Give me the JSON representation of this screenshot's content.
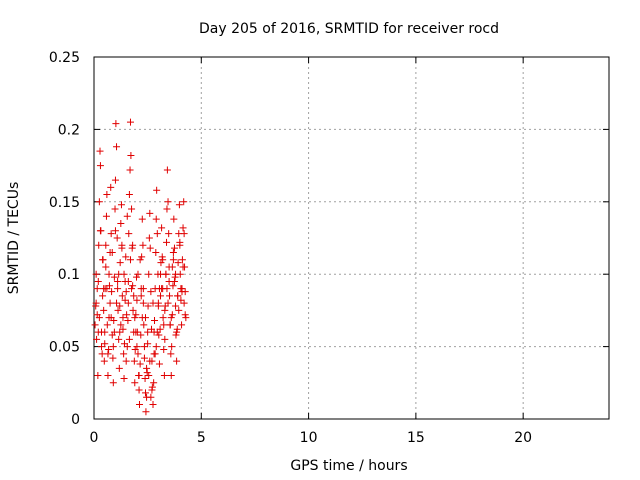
{
  "chart_data": {
    "type": "scatter",
    "title": "Day 205 of 2016, SRMTID for receiver rocd",
    "xlabel": "GPS time / hours",
    "ylabel": "SRMTID / TECUs",
    "xlim": [
      0,
      24
    ],
    "ylim": [
      0,
      0.25
    ],
    "x_ticks": [
      0,
      5,
      10,
      15,
      20
    ],
    "y_ticks": [
      0,
      0.05,
      0.1,
      0.15,
      0.2,
      0.25
    ],
    "x_tick_labels": [
      "0",
      "5",
      "10",
      "15",
      "20"
    ],
    "y_tick_labels": [
      "0",
      "0.05",
      "0.1",
      "0.15",
      "0.2",
      "0.25"
    ],
    "grid": true,
    "marker": "+",
    "marker_color": "#e00000",
    "x": [
      0.05,
      0.08,
      0.1,
      0.12,
      0.15,
      0.18,
      0.2,
      0.22,
      0.25,
      0.28,
      0.3,
      0.32,
      0.35,
      0.38,
      0.4,
      0.42,
      0.45,
      0.48,
      0.5,
      0.52,
      0.55,
      0.58,
      0.6,
      0.62,
      0.65,
      0.68,
      0.7,
      0.72,
      0.75,
      0.78,
      0.8,
      0.82,
      0.85,
      0.88,
      0.9,
      0.92,
      0.95,
      0.98,
      1.0,
      1.02,
      1.05,
      1.08,
      1.1,
      1.12,
      1.15,
      1.18,
      1.2,
      1.22,
      1.25,
      1.28,
      1.3,
      1.32,
      1.35,
      1.38,
      1.4,
      1.42,
      1.45,
      1.48,
      1.5,
      1.52,
      1.55,
      1.58,
      1.6,
      1.62,
      1.65,
      1.68,
      1.7,
      1.72,
      1.75,
      1.78,
      1.8,
      1.82,
      1.85,
      1.88,
      1.9,
      1.92,
      1.95,
      1.98,
      2.0,
      2.02,
      2.05,
      2.08,
      2.1,
      2.12,
      2.15,
      2.18,
      2.2,
      2.22,
      2.25,
      2.28,
      2.3,
      2.32,
      2.35,
      2.38,
      2.4,
      2.42,
      2.45,
      2.48,
      2.5,
      2.52,
      2.55,
      2.58,
      2.6,
      2.62,
      2.65,
      2.68,
      2.7,
      2.72,
      2.75,
      2.78,
      2.8,
      2.82,
      2.85,
      2.88,
      2.9,
      2.92,
      2.95,
      2.98,
      3.0,
      3.02,
      3.05,
      3.08,
      3.1,
      3.12,
      3.15,
      3.18,
      3.2,
      3.22,
      3.25,
      3.28,
      3.3,
      3.32,
      3.35,
      3.38,
      3.4,
      3.42,
      3.45,
      3.48,
      3.5,
      3.52,
      3.55,
      3.58,
      3.6,
      3.62,
      3.65,
      3.68,
      3.7,
      3.72,
      3.75,
      3.78,
      3.8,
      3.82,
      3.85,
      3.88,
      3.9,
      3.92,
      3.95,
      3.98,
      4.0,
      4.02,
      4.05,
      4.08,
      4.1,
      4.12,
      4.15,
      4.18,
      4.2,
      4.22,
      4.25,
      4.28,
      0.1,
      0.3,
      0.5,
      0.7,
      0.9,
      1.1,
      1.3,
      1.5,
      1.7,
      1.9,
      2.1,
      2.3,
      2.5,
      2.7,
      2.9,
      3.1,
      3.3,
      3.5,
      3.7,
      3.9,
      4.1,
      0.2,
      0.4,
      0.6,
      0.8,
      1.0,
      1.2,
      1.4,
      1.6,
      1.8,
      2.0,
      2.2,
      2.4,
      2.6,
      2.8,
      3.0,
      3.2,
      3.4,
      3.6,
      3.8,
      4.0,
      4.2,
      0.15,
      0.35,
      0.55,
      0.75,
      0.95,
      1.15,
      1.35,
      1.55,
      1.75,
      1.95,
      2.15,
      2.35,
      2.55,
      2.75,
      2.95,
      3.15,
      3.35,
      3.55,
      3.75,
      3.95,
      4.15,
      0.25,
      0.45,
      0.65,
      0.85,
      1.05,
      1.25,
      1.45,
      1.65,
      1.85,
      2.05,
      2.25,
      2.45,
      2.65,
      2.85,
      3.05,
      3.25,
      3.45,
      3.65,
      3.85,
      4.05,
      4.25
    ],
    "y": [
      0.065,
      0.078,
      0.1,
      0.055,
      0.072,
      0.03,
      0.095,
      0.12,
      0.15,
      0.185,
      0.175,
      0.13,
      0.06,
      0.045,
      0.085,
      0.11,
      0.075,
      0.04,
      0.052,
      0.09,
      0.105,
      0.14,
      0.155,
      0.065,
      0.03,
      0.048,
      0.07,
      0.092,
      0.115,
      0.16,
      0.128,
      0.088,
      0.058,
      0.042,
      0.025,
      0.068,
      0.098,
      0.145,
      0.165,
      0.204,
      0.188,
      0.125,
      0.095,
      0.075,
      0.055,
      0.035,
      0.078,
      0.108,
      0.135,
      0.148,
      0.118,
      0.085,
      0.062,
      0.045,
      0.028,
      0.052,
      0.082,
      0.112,
      0.088,
      0.072,
      0.05,
      0.068,
      0.095,
      0.128,
      0.155,
      0.172,
      0.205,
      0.182,
      0.145,
      0.118,
      0.092,
      0.075,
      0.06,
      0.04,
      0.025,
      0.048,
      0.072,
      0.098,
      0.082,
      0.06,
      0.045,
      0.03,
      0.02,
      0.01,
      0.038,
      0.058,
      0.085,
      0.112,
      0.138,
      0.12,
      0.09,
      0.065,
      0.042,
      0.028,
      0.018,
      0.005,
      0.015,
      0.032,
      0.052,
      0.078,
      0.1,
      0.125,
      0.142,
      0.118,
      0.088,
      0.062,
      0.04,
      0.022,
      0.01,
      0.025,
      0.045,
      0.068,
      0.09,
      0.115,
      0.138,
      0.158,
      0.128,
      0.1,
      0.078,
      0.058,
      0.038,
      0.062,
      0.085,
      0.108,
      0.132,
      0.112,
      0.09,
      0.07,
      0.048,
      0.03,
      0.055,
      0.078,
      0.1,
      0.122,
      0.145,
      0.172,
      0.15,
      0.128,
      0.105,
      0.085,
      0.065,
      0.045,
      0.03,
      0.05,
      0.072,
      0.092,
      0.115,
      0.138,
      0.118,
      0.098,
      0.078,
      0.058,
      0.04,
      0.062,
      0.085,
      0.108,
      0.128,
      0.148,
      0.122,
      0.1,
      0.082,
      0.065,
      0.088,
      0.11,
      0.132,
      0.15,
      0.128,
      0.105,
      0.088,
      0.07,
      0.08,
      0.13,
      0.06,
      0.1,
      0.05,
      0.09,
      0.12,
      0.04,
      0.11,
      0.07,
      0.03,
      0.08,
      0.06,
      0.02,
      0.05,
      0.1,
      0.075,
      0.095,
      0.11,
      0.085,
      0.09,
      0.06,
      0.11,
      0.09,
      0.07,
      0.13,
      0.06,
      0.1,
      0.08,
      0.12,
      0.05,
      0.09,
      0.07,
      0.04,
      0.06,
      0.08,
      0.11,
      0.09,
      0.07,
      0.1,
      0.12,
      0.08,
      0.09,
      0.05,
      0.12,
      0.08,
      0.06,
      0.1,
      0.07,
      0.14,
      0.09,
      0.06,
      0.11,
      0.05,
      0.03,
      0.08,
      0.06,
      0.09,
      0.1,
      0.065,
      0.095,
      0.075,
      0.105,
      0.07,
      0.09,
      0.045,
      0.115,
      0.08,
      0.065,
      0.095,
      0.055,
      0.085,
      0.1,
      0.07,
      0.035,
      0.015,
      0.045,
      0.09,
      0.065,
      0.08,
      0.105,
      0.06,
      0.09,
      0.072
    ]
  }
}
